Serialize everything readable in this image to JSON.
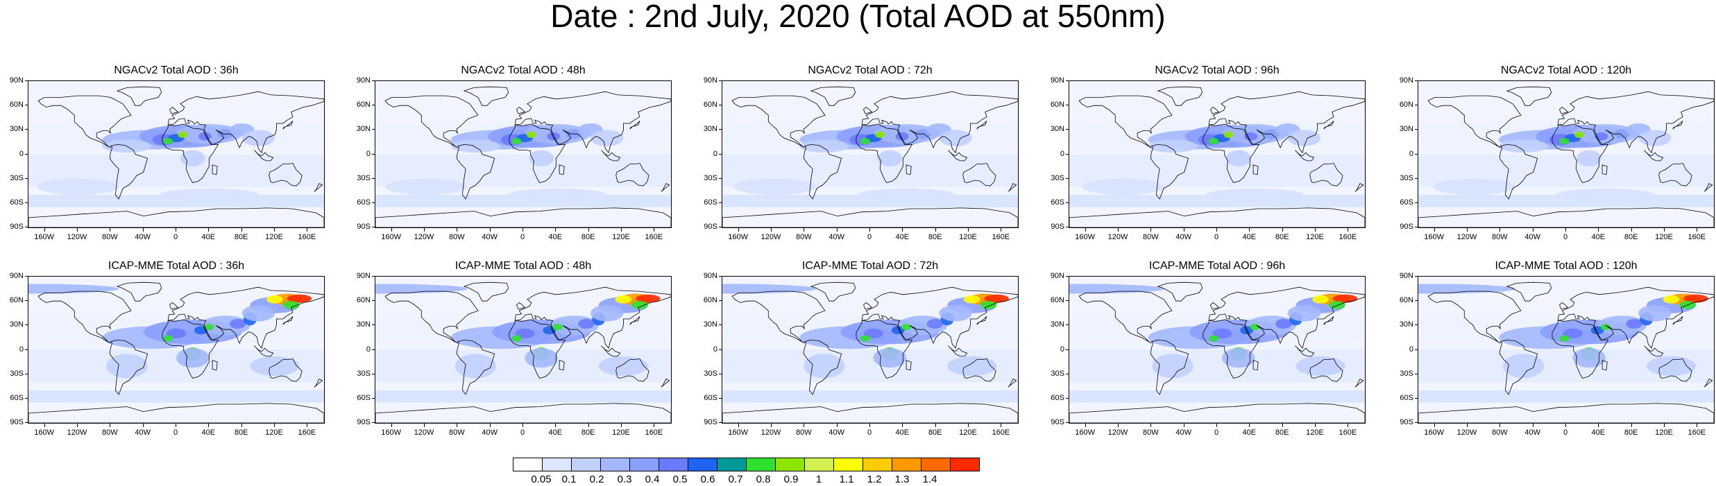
{
  "title": "Date : 2nd July, 2020 (Total AOD at 550nm)",
  "lat_ticks": [
    "90N",
    "60N",
    "30N",
    "0",
    "30S",
    "60S",
    "90S"
  ],
  "lon_ticks": [
    "160W",
    "120W",
    "80W",
    "40W",
    "0",
    "40E",
    "80E",
    "120E",
    "160E"
  ],
  "panels": [
    {
      "title": "NGACv2 Total AOD : 36h",
      "model": "NGACv2",
      "hour": 36
    },
    {
      "title": "NGACv2 Total AOD : 48h",
      "model": "NGACv2",
      "hour": 48
    },
    {
      "title": "NGACv2 Total AOD : 72h",
      "model": "NGACv2",
      "hour": 72
    },
    {
      "title": "NGACv2 Total AOD : 96h",
      "model": "NGACv2",
      "hour": 96
    },
    {
      "title": "NGACv2 Total AOD : 120h",
      "model": "NGACv2",
      "hour": 120
    },
    {
      "title": "ICAP-MME Total AOD : 36h",
      "model": "ICAP-MME",
      "hour": 36
    },
    {
      "title": "ICAP-MME Total AOD : 48h",
      "model": "ICAP-MME",
      "hour": 48
    },
    {
      "title": "ICAP-MME Total AOD : 72h",
      "model": "ICAP-MME",
      "hour": 72
    },
    {
      "title": "ICAP-MME Total AOD : 96h",
      "model": "ICAP-MME",
      "hour": 96
    },
    {
      "title": "ICAP-MME Total AOD : 120h",
      "model": "ICAP-MME",
      "hour": 120
    }
  ],
  "colorbar": {
    "labels": [
      "0.05",
      "0.1",
      "0.2",
      "0.3",
      "0.4",
      "0.5",
      "0.6",
      "0.7",
      "0.8",
      "0.9",
      "1",
      "1.1",
      "1.2",
      "1.3",
      "1.4"
    ],
    "colors": [
      "#ffffff",
      "#dde6ff",
      "#c1d0ff",
      "#a3b8ff",
      "#8aa0ff",
      "#6b7bff",
      "#1e64f0",
      "#009a9a",
      "#30e030",
      "#8ce600",
      "#d2f050",
      "#ffff00",
      "#ffcc00",
      "#ff9900",
      "#ff6a00",
      "#ff2a00"
    ]
  }
}
